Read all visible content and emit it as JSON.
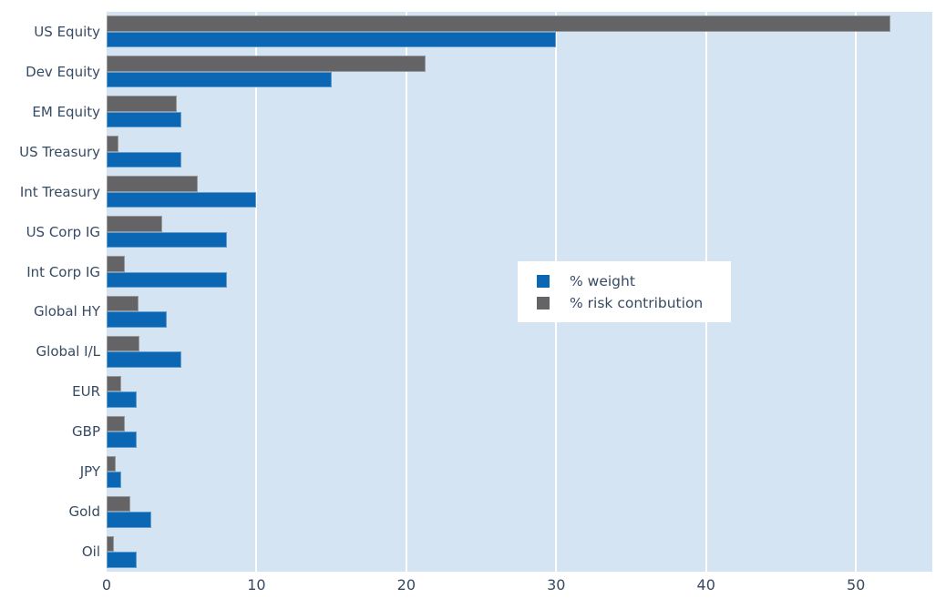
{
  "chart_data": {
    "type": "bar",
    "orientation": "horizontal",
    "title": "",
    "xlabel": "",
    "ylabel": "",
    "categories": [
      "US Equity",
      "Dev Equity",
      "EM Equity",
      "US Treasury",
      "Int Treasury",
      "US Corp IG",
      "Int Corp IG",
      "Global HY",
      "Global I/L",
      "EUR",
      "GBP",
      "JPY",
      "Gold",
      "Oil"
    ],
    "series": [
      {
        "name": "% weight",
        "color": "#0b67b4",
        "values": [
          30,
          15,
          5,
          5,
          10,
          8,
          8,
          4,
          5,
          2,
          2,
          1,
          3,
          2
        ]
      },
      {
        "name": "% risk contribution",
        "color": "#646466",
        "values": [
          52.3,
          21.3,
          4.7,
          0.8,
          6.1,
          3.7,
          1.2,
          2.1,
          2.2,
          1.0,
          1.2,
          0.6,
          1.6,
          0.5
        ]
      }
    ],
    "bar_order_within_group": [
      "% risk contribution",
      "% weight"
    ],
    "xticks": [
      0,
      10,
      20,
      30,
      40,
      50
    ],
    "xlim": [
      0,
      55.1
    ],
    "grid": true,
    "grid_color": "#ffffff",
    "plot_bg_color": "#d5e4f2",
    "page_bg_color": "#ffffff",
    "text_color": "#374a63",
    "legend_position": "center-right",
    "legend_bg_color": "#ffffff"
  }
}
